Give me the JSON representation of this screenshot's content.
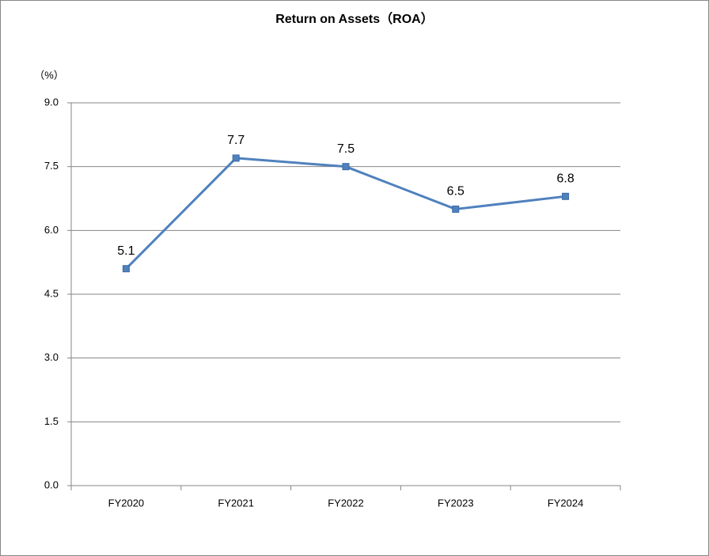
{
  "chart_data": {
    "type": "line",
    "title": "Return on Assets（ROA）",
    "y_label": "（%）",
    "categories": [
      "FY2020",
      "FY2021",
      "FY2022",
      "FY2023",
      "FY2024"
    ],
    "values": [
      5.1,
      7.7,
      7.5,
      6.5,
      6.8
    ],
    "color": "#4f81bd",
    "ylim": [
      0,
      9
    ],
    "yticks": [
      {
        "value": 0,
        "label": "0.0"
      },
      1.5,
      {
        "value": 3,
        "label": "3.0"
      },
      4.5,
      {
        "value": 6,
        "label": "6.0"
      },
      7.5,
      {
        "value": 9,
        "label": "9.0"
      }
    ],
    "grid": true
  }
}
